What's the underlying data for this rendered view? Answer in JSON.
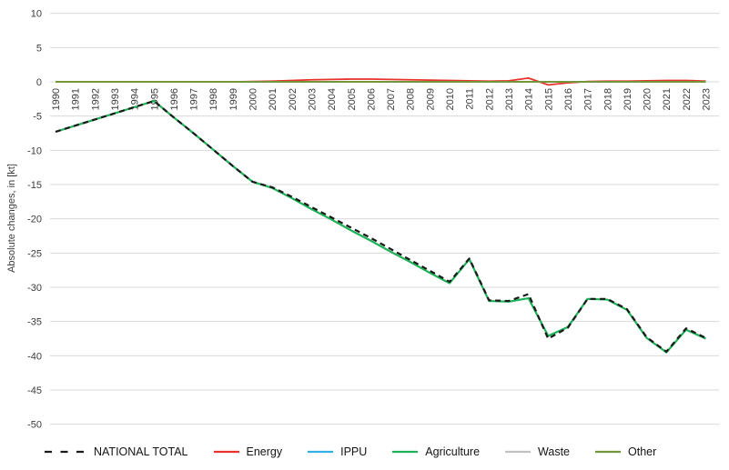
{
  "chart_data": {
    "type": "line",
    "ylabel": "Absolute changes, in [kt]",
    "xlabel": "",
    "ylim": [
      -50,
      10
    ],
    "yticks": [
      10,
      5,
      0,
      -5,
      -10,
      -15,
      -20,
      -25,
      -30,
      -35,
      -40,
      -45,
      -50
    ],
    "grid": true,
    "grid_color": "#dadada",
    "legend_position": "bottom",
    "x": [
      1990,
      1991,
      1992,
      1993,
      1994,
      1995,
      1996,
      1997,
      1998,
      1999,
      2000,
      2001,
      2002,
      2003,
      2004,
      2005,
      2006,
      2007,
      2008,
      2009,
      2010,
      2011,
      2012,
      2013,
      2014,
      2015,
      2016,
      2017,
      2018,
      2019,
      2020,
      2021,
      2022,
      2023
    ],
    "draw_order": [
      "IPPU",
      "Waste",
      "Energy",
      "Other",
      "Agriculture",
      "NATIONAL TOTAL"
    ],
    "series": [
      {
        "name": "NATIONAL TOTAL",
        "color": "#1a1a1a",
        "dash": "6 4.5",
        "width": 2.2,
        "values": [
          -7.3,
          -6.4,
          -5.5,
          -4.6,
          -3.7,
          -2.8,
          -5.2,
          -7.5,
          -9.9,
          -12.3,
          -14.6,
          -15.4,
          -16.8,
          -18.3,
          -19.8,
          -21.3,
          -22.8,
          -24.4,
          -26.0,
          -27.6,
          -29.2,
          -25.8,
          -31.9,
          -32.0,
          -31.0,
          -37.5,
          -35.9,
          -31.7,
          -31.7,
          -33.2,
          -37.3,
          -39.4,
          -36.0,
          -37.4
        ]
      },
      {
        "name": "Energy",
        "color": "#e8332a",
        "dash": "",
        "width": 1.8,
        "values": [
          0,
          0,
          0,
          0,
          0,
          0,
          0,
          0,
          0,
          0,
          0.05,
          0.1,
          0.2,
          0.3,
          0.35,
          0.4,
          0.4,
          0.35,
          0.3,
          0.25,
          0.2,
          0.15,
          0.1,
          0.15,
          0.55,
          -0.45,
          -0.15,
          0.05,
          0.1,
          0.1,
          0.15,
          0.2,
          0.2,
          0.1
        ]
      },
      {
        "name": "IPPU",
        "color": "#31b0e6",
        "dash": "",
        "width": 1.8,
        "values": [
          0,
          0,
          0,
          0,
          0,
          0,
          0,
          0,
          0,
          0,
          0,
          0,
          0,
          0,
          0,
          0,
          0,
          0,
          0,
          0,
          0,
          0,
          0,
          0,
          0,
          0,
          0,
          0,
          0,
          0,
          0,
          0,
          0,
          0
        ]
      },
      {
        "name": "Agriculture",
        "color": "#1db257",
        "dash": "",
        "width": 2.2,
        "values": [
          -7.3,
          -6.4,
          -5.5,
          -4.6,
          -3.7,
          -2.8,
          -5.2,
          -7.5,
          -9.9,
          -12.3,
          -14.6,
          -15.5,
          -17.0,
          -18.6,
          -20.1,
          -21.7,
          -23.2,
          -24.8,
          -26.3,
          -27.9,
          -29.4,
          -25.9,
          -32.0,
          -32.1,
          -31.6,
          -37.1,
          -35.8,
          -31.7,
          -31.8,
          -33.3,
          -37.4,
          -39.5,
          -36.2,
          -37.5
        ]
      },
      {
        "name": "Waste",
        "color": "#c0c0c0",
        "dash": "",
        "width": 1.8,
        "values": [
          0,
          0,
          0,
          0,
          0,
          0,
          0,
          0,
          0,
          0,
          0,
          0,
          0,
          0,
          0,
          0,
          0,
          0,
          0,
          0,
          0,
          0,
          0,
          0,
          0,
          0,
          0,
          0,
          0,
          0,
          0,
          0,
          0,
          0
        ]
      },
      {
        "name": "Other",
        "color": "#73963c",
        "dash": "",
        "width": 2,
        "values": [
          0,
          0,
          0,
          0,
          0,
          0,
          0,
          0,
          0,
          0,
          0,
          0,
          0,
          0,
          0,
          0,
          0,
          0,
          0,
          0,
          0,
          0,
          0,
          0,
          0,
          0,
          0,
          0,
          0,
          0,
          0,
          0,
          0,
          0
        ]
      }
    ]
  }
}
